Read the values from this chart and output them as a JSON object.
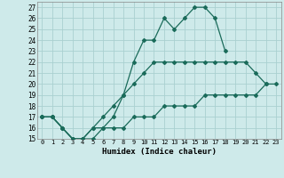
{
  "xlabel": "Humidex (Indice chaleur)",
  "bg_color": "#ceeaea",
  "grid_color": "#aad0d0",
  "line_color": "#1a6b5a",
  "xlim": [
    -0.5,
    23.5
  ],
  "ylim": [
    15,
    27.5
  ],
  "xticks": [
    0,
    1,
    2,
    3,
    4,
    5,
    6,
    7,
    8,
    9,
    10,
    11,
    12,
    13,
    14,
    15,
    16,
    17,
    18,
    19,
    20,
    21,
    22,
    23
  ],
  "yticks": [
    15,
    16,
    17,
    18,
    19,
    20,
    21,
    22,
    23,
    24,
    25,
    26,
    27
  ],
  "line1_x": [
    0,
    1,
    2,
    3,
    4,
    5,
    6,
    7,
    8,
    9,
    10,
    11,
    12,
    13,
    14,
    15,
    16,
    17,
    18
  ],
  "line1_y": [
    17,
    17,
    16,
    15,
    15,
    15,
    16,
    17,
    19,
    22,
    24,
    24,
    26,
    25,
    26,
    27,
    27,
    26,
    23
  ],
  "line2_x": [
    0,
    1,
    2,
    3,
    4,
    5,
    6,
    7,
    8,
    9,
    10,
    11,
    12,
    13,
    14,
    15,
    16,
    17,
    18,
    19,
    20,
    21,
    22
  ],
  "line2_y": [
    17,
    17,
    16,
    15,
    15,
    16,
    17,
    18,
    19,
    20,
    21,
    22,
    22,
    22,
    22,
    22,
    22,
    22,
    22,
    22,
    22,
    21,
    20
  ],
  "line3_x": [
    0,
    1,
    2,
    3,
    4,
    5,
    6,
    7,
    8,
    9,
    10,
    11,
    12,
    13,
    14,
    15,
    16,
    17,
    18,
    19,
    20,
    21,
    22,
    23
  ],
  "line3_y": [
    17,
    17,
    16,
    15,
    15,
    16,
    16,
    16,
    16,
    17,
    17,
    17,
    18,
    18,
    18,
    18,
    19,
    19,
    19,
    19,
    19,
    19,
    20,
    20
  ]
}
